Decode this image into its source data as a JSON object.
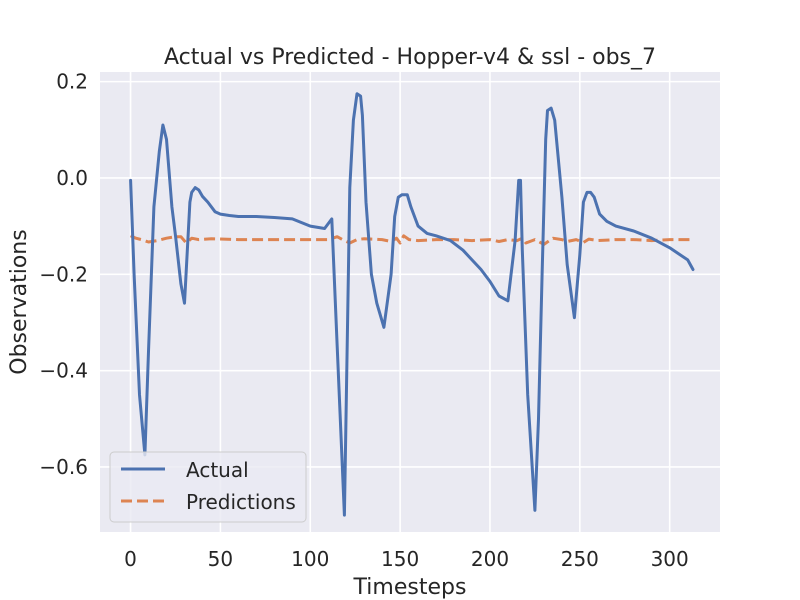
{
  "chart_data": {
    "type": "line",
    "title": "Actual vs Predicted - Hopper-v4 & ssl - obs_7",
    "xlabel": "Timesteps",
    "ylabel": "Observations",
    "xlim": [
      -17,
      328
    ],
    "ylim": [
      -0.735,
      0.22
    ],
    "xticks": [
      0,
      50,
      100,
      150,
      200,
      250,
      300
    ],
    "yticks": [
      0.2,
      0.0,
      -0.2,
      -0.4,
      -0.6
    ],
    "xtick_labels": [
      "0",
      "50",
      "100",
      "150",
      "200",
      "250",
      "300"
    ],
    "ytick_labels": [
      "0.2",
      "0.0",
      "−0.2",
      "−0.4",
      "−0.6"
    ],
    "grid": true,
    "legend_position": "lower-left",
    "background": "#eaeaf2",
    "series": [
      {
        "name": "Actual",
        "color": "#4c72b0",
        "style": "solid",
        "x": [
          0,
          2,
          5,
          8,
          10,
          13,
          16,
          18,
          20,
          23,
          25,
          28,
          30,
          33,
          34,
          36,
          38,
          40,
          43,
          47,
          50,
          55,
          60,
          70,
          80,
          90,
          100,
          108,
          112,
          115,
          119,
          122,
          124,
          126,
          128,
          129,
          131,
          134,
          137,
          141,
          145,
          147,
          149,
          151,
          152,
          154,
          156,
          160,
          165,
          170,
          178,
          185,
          190,
          195,
          200,
          205,
          210,
          214,
          216,
          217,
          218,
          221,
          225,
          227,
          229,
          231,
          232,
          234,
          236,
          240,
          243,
          247,
          250,
          252,
          254,
          256,
          258,
          261,
          265,
          270,
          280,
          290,
          300,
          310,
          313
        ],
        "y": [
          -0.005,
          -0.2,
          -0.45,
          -0.575,
          -0.36,
          -0.06,
          0.055,
          0.11,
          0.08,
          -0.06,
          -0.12,
          -0.22,
          -0.26,
          -0.05,
          -0.03,
          -0.02,
          -0.025,
          -0.038,
          -0.05,
          -0.07,
          -0.075,
          -0.078,
          -0.08,
          -0.08,
          -0.082,
          -0.085,
          -0.1,
          -0.105,
          -0.085,
          -0.35,
          -0.7,
          -0.02,
          0.12,
          0.175,
          0.17,
          0.13,
          -0.05,
          -0.2,
          -0.26,
          -0.31,
          -0.2,
          -0.08,
          -0.04,
          -0.035,
          -0.035,
          -0.035,
          -0.06,
          -0.1,
          -0.115,
          -0.12,
          -0.13,
          -0.15,
          -0.17,
          -0.19,
          -0.215,
          -0.245,
          -0.255,
          -0.13,
          -0.005,
          -0.005,
          -0.15,
          -0.45,
          -0.69,
          -0.5,
          -0.2,
          0.08,
          0.14,
          0.145,
          0.12,
          -0.04,
          -0.18,
          -0.29,
          -0.16,
          -0.05,
          -0.03,
          -0.03,
          -0.04,
          -0.075,
          -0.09,
          -0.1,
          -0.11,
          -0.125,
          -0.145,
          -0.17,
          -0.19
        ]
      },
      {
        "name": "Predictions",
        "color": "#dd8452",
        "style": "dashed",
        "x": [
          0,
          3,
          6,
          10,
          15,
          20,
          25,
          28,
          31,
          34,
          38,
          45,
          60,
          80,
          100,
          110,
          115,
          119,
          122,
          126,
          130,
          140,
          145,
          148,
          150,
          152,
          155,
          160,
          170,
          180,
          190,
          200,
          205,
          210,
          215,
          218,
          220,
          225,
          230,
          235,
          240,
          243,
          248,
          252,
          255,
          260,
          270,
          280,
          290,
          300,
          310,
          313
        ],
        "y": [
          -0.12,
          -0.125,
          -0.128,
          -0.133,
          -0.13,
          -0.125,
          -0.122,
          -0.122,
          -0.135,
          -0.125,
          -0.128,
          -0.126,
          -0.128,
          -0.128,
          -0.128,
          -0.128,
          -0.122,
          -0.13,
          -0.135,
          -0.128,
          -0.126,
          -0.128,
          -0.132,
          -0.125,
          -0.135,
          -0.12,
          -0.128,
          -0.13,
          -0.128,
          -0.128,
          -0.13,
          -0.128,
          -0.132,
          -0.128,
          -0.13,
          -0.125,
          -0.135,
          -0.128,
          -0.138,
          -0.125,
          -0.128,
          -0.132,
          -0.128,
          -0.134,
          -0.127,
          -0.13,
          -0.128,
          -0.128,
          -0.13,
          -0.128,
          -0.128,
          -0.128
        ]
      }
    ]
  }
}
